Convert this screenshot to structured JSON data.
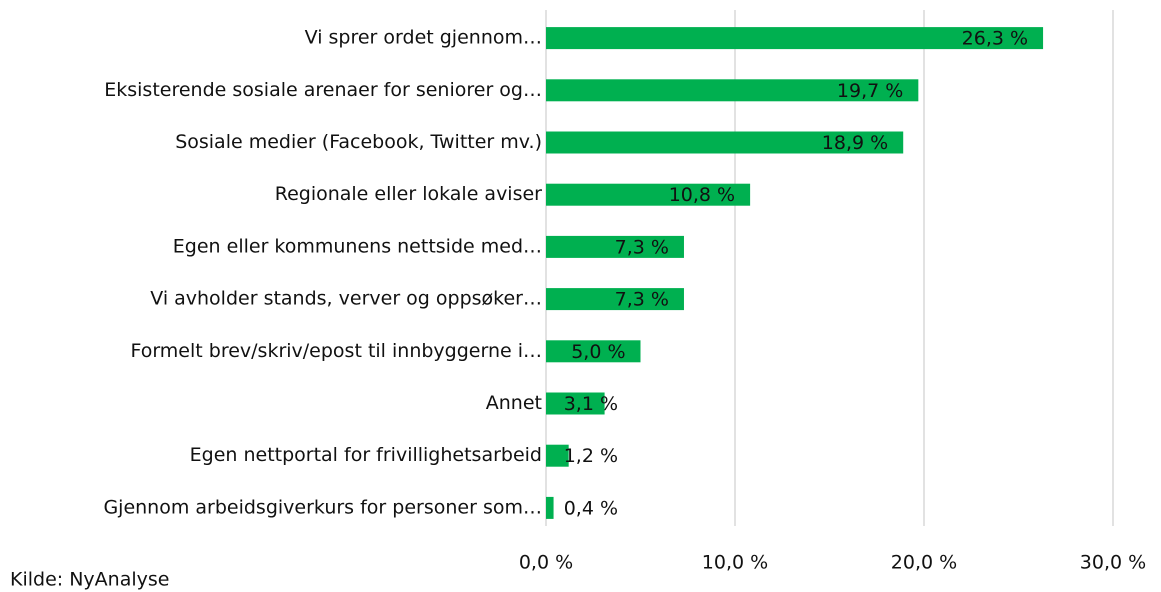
{
  "chart_data": {
    "type": "barh",
    "categories": [
      "Vi sprer ordet gjennom…",
      "Eksisterende sosiale arenaer for seniorer og…",
      "Sosiale medier (Facebook, Twitter mv.)",
      "Regionale eller lokale aviser",
      "Egen eller kommunens nettside med…",
      "Vi avholder stands, verver og oppsøker…",
      "Formelt brev/skriv/epost til innbyggerne i…",
      "Annet",
      "Egen nettportal for frivillighetsarbeid",
      "Gjennom arbeidsgiverkurs for personer som…"
    ],
    "values": [
      26.3,
      19.7,
      18.9,
      10.8,
      7.3,
      7.3,
      5.0,
      3.1,
      1.2,
      0.4
    ],
    "value_labels": [
      "26,3 %",
      "19,7 %",
      "18,9 %",
      "10,8 %",
      "7,3 %",
      "7,3 %",
      "5,0 %",
      "3,1 %",
      "1,2 %",
      "0,4 %"
    ],
    "color": "#00b050",
    "xlim": [
      0,
      30
    ],
    "xticks": [
      {
        "value": 0,
        "label": "0,0 %"
      },
      {
        "value": 10,
        "label": "10,0 %"
      },
      {
        "value": 20,
        "label": "20,0 %"
      },
      {
        "value": 30,
        "label": "30,0 %"
      }
    ],
    "grid": true,
    "source": "Kilde: NyAnalyse"
  }
}
